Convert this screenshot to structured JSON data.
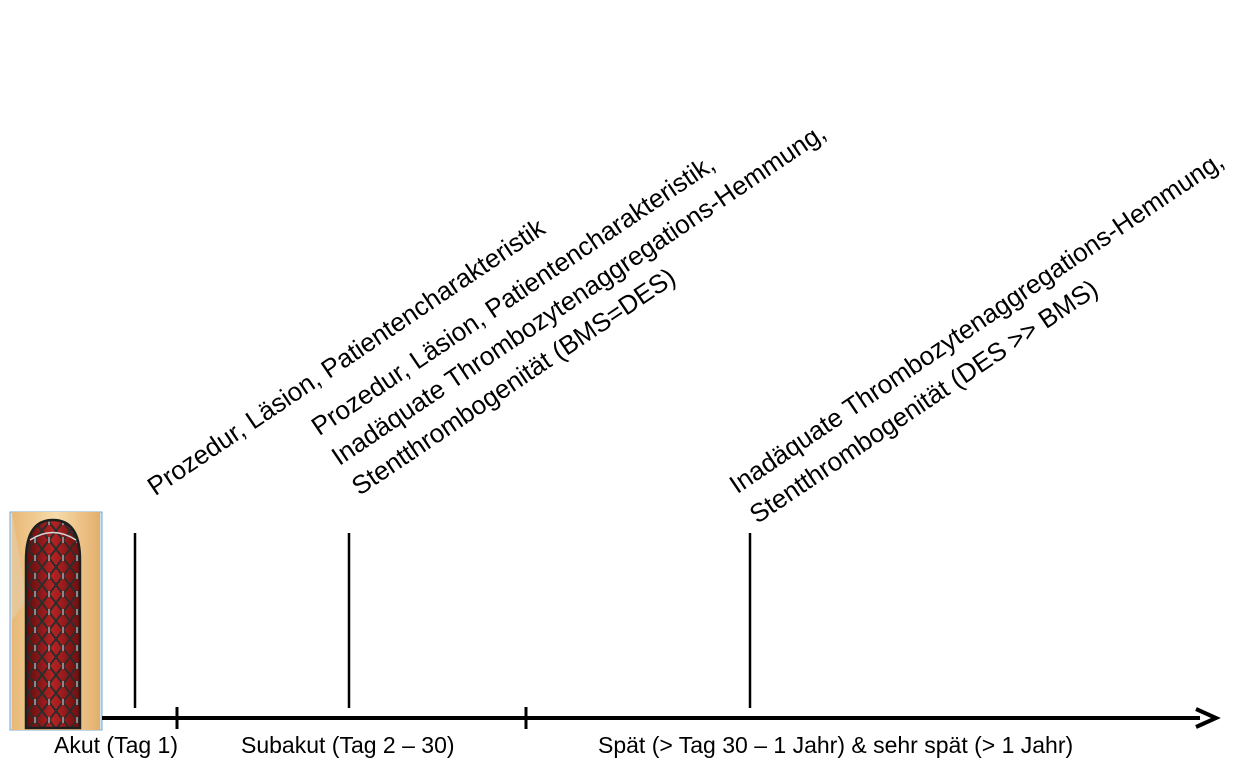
{
  "phases": [
    {
      "label": "Akut (Tag 1)"
    },
    {
      "label": "Subakut (Tag 2 – 30)"
    },
    {
      "label": "Spät (> Tag 30 – 1 Jahr) & sehr spät (> 1 Jahr)"
    }
  ],
  "causes": [
    {
      "lines": [
        "Prozedur, Läsion, Patientencharakteristik"
      ]
    },
    {
      "lines": [
        "Prozedur, Läsion, Patientencharakteristik,",
        "Inadäquate Thrombozytenaggregations-Hemmung,",
        "Stentthrombogenität (BMS=DES)"
      ]
    },
    {
      "lines": [
        "Inadäquate Thrombozytenaggregations-Hemmung,",
        "Stentthrombogenität (DES >> BMS)"
      ]
    }
  ],
  "colors": {
    "axis": "#000000",
    "stent_metal": "#3a3a3a",
    "vessel_wall": "#f2c98a",
    "lumen": "#9b1b1b",
    "image_frame": "#bcd7ea"
  }
}
